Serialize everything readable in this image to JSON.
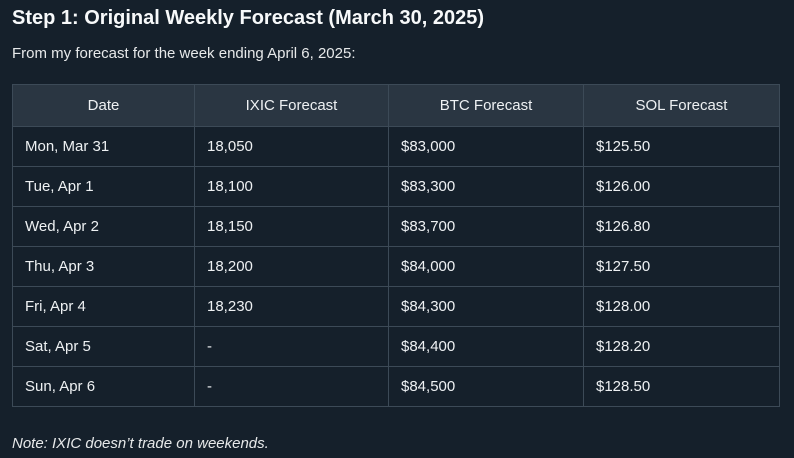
{
  "heading": "Step 1: Original Weekly Forecast (March 30, 2025)",
  "intro": "From my forecast for the week ending April 6, 2025:",
  "table": {
    "headers": [
      "Date",
      "IXIC Forecast",
      "BTC Forecast",
      "SOL Forecast"
    ],
    "rows": [
      [
        "Mon, Mar 31",
        "18,050",
        "$83,000",
        "$125.50"
      ],
      [
        "Tue, Apr 1",
        "18,100",
        "$83,300",
        "$126.00"
      ],
      [
        "Wed, Apr 2",
        "18,150",
        "$83,700",
        "$126.80"
      ],
      [
        "Thu, Apr 3",
        "18,200",
        "$84,000",
        "$127.50"
      ],
      [
        "Fri, Apr 4",
        "18,230",
        "$84,300",
        "$128.00"
      ],
      [
        "Sat, Apr 5",
        "-",
        "$84,400",
        "$128.20"
      ],
      [
        "Sun, Apr 6",
        "-",
        "$84,500",
        "$128.50"
      ]
    ]
  },
  "note": "Note: IXIC doesn’t trade on weekends."
}
